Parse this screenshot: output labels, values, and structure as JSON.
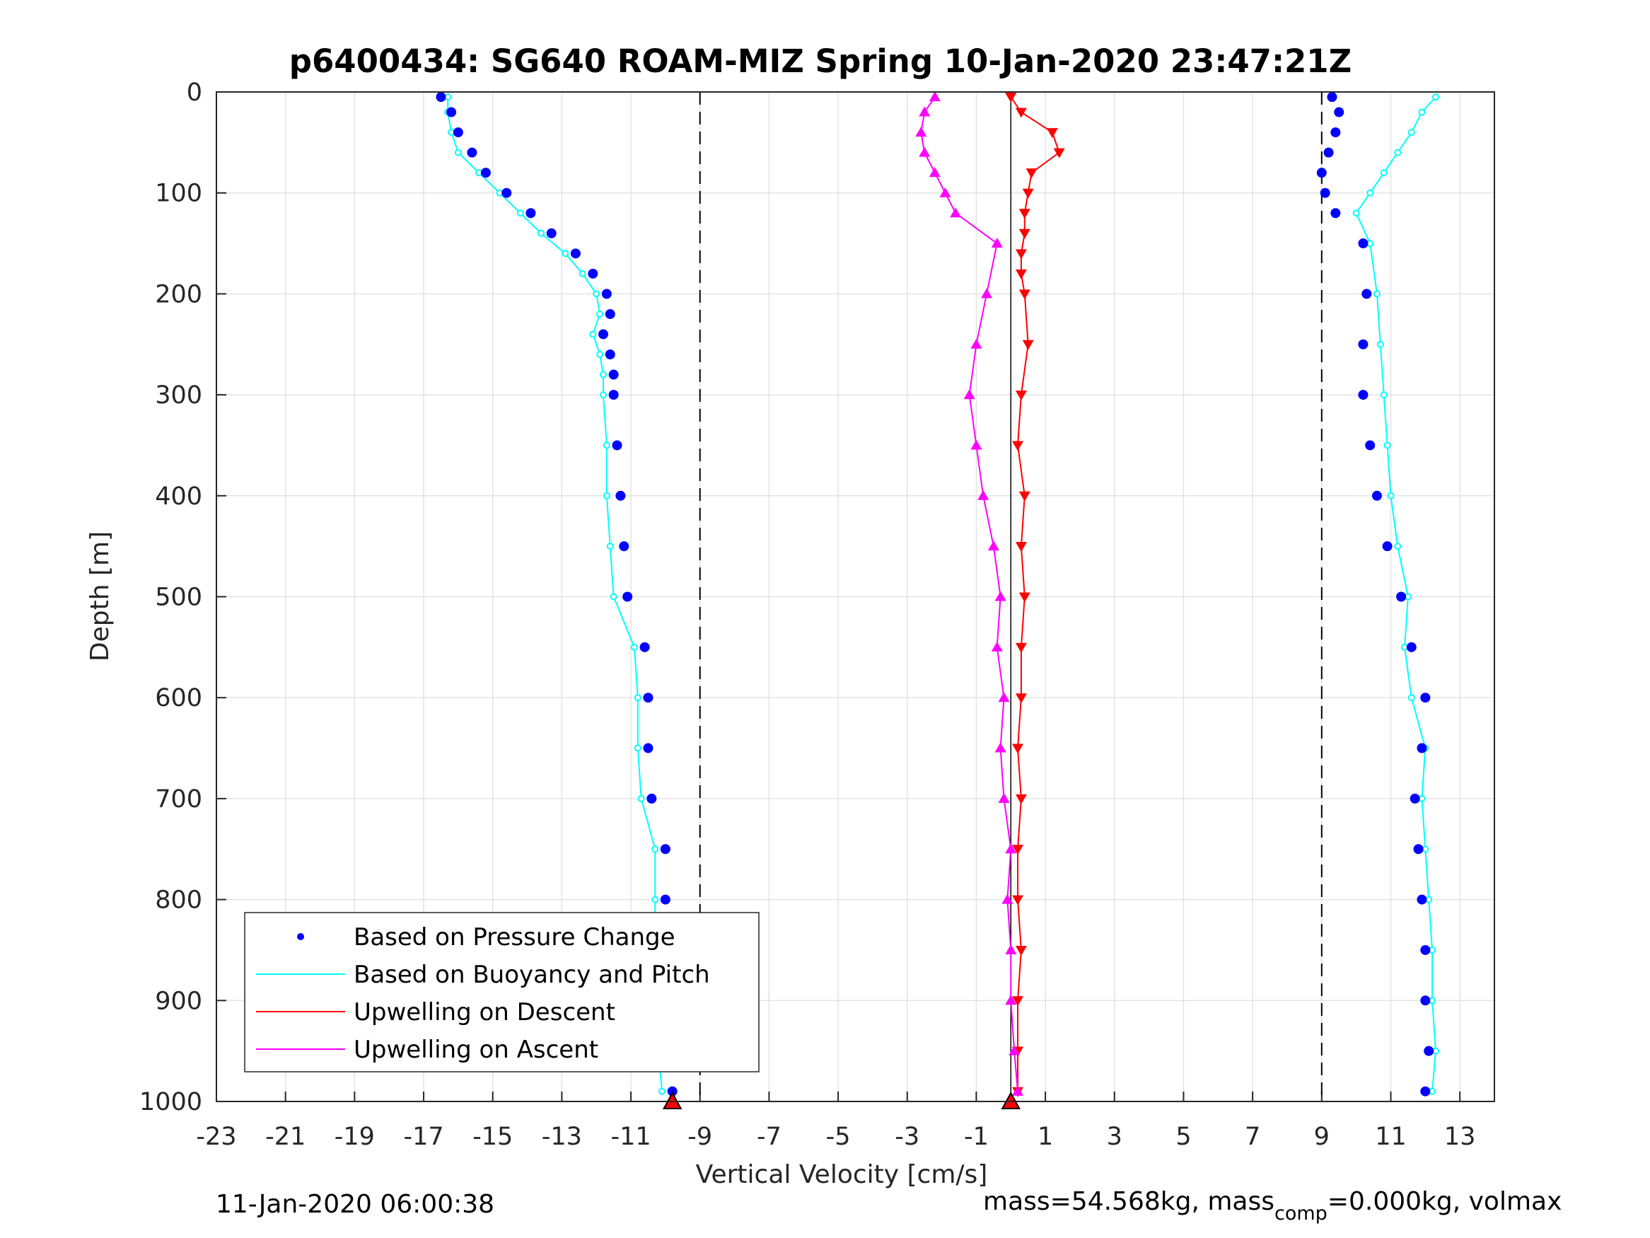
{
  "chart_data": {
    "type": "scatter",
    "title": "p6400434: SG640 ROAM-MIZ Spring 10-Jan-2020 23:47:21Z",
    "xlabel": "Vertical Velocity [cm/s]",
    "ylabel": "Depth [m]",
    "xlim": [
      -23,
      14
    ],
    "ylim": [
      0,
      1000
    ],
    "y_reversed": true,
    "grid": true,
    "x_ticks": [
      -23,
      -21,
      -19,
      -17,
      -15,
      -13,
      -11,
      -9,
      -7,
      -5,
      -3,
      -1,
      1,
      3,
      5,
      7,
      9,
      11,
      13
    ],
    "y_ticks": [
      0,
      100,
      200,
      300,
      400,
      500,
      600,
      700,
      800,
      900,
      1000
    ],
    "reference_lines_x": [
      -9,
      9
    ],
    "colors": {
      "pressure": "#0000ff",
      "buoyancy": "#00ffff",
      "descent": "#ff0000",
      "ascent": "#ff00ff"
    },
    "legend_position": "bottom-left",
    "legend": [
      "Based on Pressure Change",
      "Based on Buoyancy and Pitch",
      "Upwelling on Descent",
      "Upwelling on Ascent"
    ],
    "series": [
      {
        "name": "Based on Pressure Change",
        "role": "descent-velocity",
        "depth": [
          5,
          20,
          40,
          60,
          80,
          100,
          120,
          140,
          160,
          180,
          200,
          220,
          240,
          260,
          280,
          300,
          350,
          400,
          450,
          500,
          550,
          600,
          650,
          700,
          750,
          800,
          850,
          900,
          950,
          990
        ],
        "velocity": [
          -16.5,
          -16.2,
          -16.0,
          -15.6,
          -15.2,
          -14.6,
          -13.9,
          -13.3,
          -12.6,
          -12.1,
          -11.7,
          -11.6,
          -11.8,
          -11.6,
          -11.5,
          -11.5,
          -11.4,
          -11.3,
          -11.2,
          -11.1,
          -10.6,
          -10.5,
          -10.5,
          -10.4,
          -10.0,
          -10.0,
          -10.0,
          -10.0,
          -9.9,
          -9.8
        ]
      },
      {
        "name": "Based on Buoyancy and Pitch",
        "role": "descent-velocity",
        "depth": [
          5,
          20,
          40,
          60,
          80,
          100,
          120,
          140,
          160,
          180,
          200,
          220,
          240,
          260,
          280,
          300,
          350,
          400,
          450,
          500,
          550,
          600,
          650,
          700,
          750,
          800,
          850,
          900,
          950,
          990
        ],
        "velocity": [
          -16.3,
          -16.3,
          -16.2,
          -16.0,
          -15.4,
          -14.8,
          -14.2,
          -13.6,
          -12.9,
          -12.4,
          -12.0,
          -11.9,
          -12.1,
          -11.9,
          -11.8,
          -11.8,
          -11.7,
          -11.7,
          -11.6,
          -11.5,
          -10.9,
          -10.8,
          -10.8,
          -10.7,
          -10.3,
          -10.3,
          -10.3,
          -10.3,
          -10.2,
          -10.1
        ]
      },
      {
        "name": "Based on Pressure Change",
        "role": "ascent-velocity",
        "depth": [
          990,
          950,
          900,
          850,
          800,
          750,
          700,
          650,
          600,
          550,
          500,
          450,
          400,
          350,
          300,
          250,
          200,
          150,
          120,
          100,
          80,
          60,
          40,
          20,
          5
        ],
        "velocity": [
          12.0,
          12.1,
          12.0,
          12.0,
          11.9,
          11.8,
          11.7,
          11.9,
          12.0,
          11.6,
          11.3,
          10.9,
          10.6,
          10.4,
          10.2,
          10.2,
          10.3,
          10.2,
          9.4,
          9.1,
          9.0,
          9.2,
          9.4,
          9.5,
          9.3
        ]
      },
      {
        "name": "Based on Buoyancy and Pitch",
        "role": "ascent-velocity",
        "depth": [
          990,
          950,
          900,
          850,
          800,
          750,
          700,
          650,
          600,
          550,
          500,
          450,
          400,
          350,
          300,
          250,
          200,
          150,
          120,
          100,
          80,
          60,
          40,
          20,
          5
        ],
        "velocity": [
          12.2,
          12.3,
          12.2,
          12.2,
          12.1,
          12.0,
          11.9,
          12.0,
          11.6,
          11.4,
          11.5,
          11.2,
          11.0,
          10.9,
          10.8,
          10.7,
          10.6,
          10.4,
          10.0,
          10.4,
          10.8,
          11.2,
          11.6,
          11.9,
          12.3
        ]
      },
      {
        "name": "Upwelling on Descent",
        "depth": [
          5,
          20,
          40,
          60,
          80,
          100,
          120,
          140,
          160,
          180,
          200,
          250,
          300,
          350,
          400,
          450,
          500,
          550,
          600,
          650,
          700,
          750,
          800,
          850,
          900,
          950,
          990
        ],
        "velocity": [
          0.0,
          0.3,
          1.2,
          1.4,
          0.6,
          0.5,
          0.4,
          0.4,
          0.3,
          0.3,
          0.4,
          0.5,
          0.3,
          0.2,
          0.4,
          0.3,
          0.4,
          0.3,
          0.3,
          0.2,
          0.3,
          0.2,
          0.2,
          0.3,
          0.2,
          0.2,
          0.2
        ]
      },
      {
        "name": "Upwelling on Ascent",
        "depth": [
          990,
          950,
          900,
          850,
          800,
          750,
          700,
          650,
          600,
          550,
          500,
          450,
          400,
          350,
          300,
          250,
          200,
          150,
          120,
          100,
          80,
          60,
          40,
          20,
          5
        ],
        "velocity": [
          0.2,
          0.1,
          0.0,
          0.0,
          -0.1,
          0.0,
          -0.2,
          -0.3,
          -0.2,
          -0.4,
          -0.3,
          -0.5,
          -0.8,
          -1.0,
          -1.2,
          -1.0,
          -0.7,
          -0.4,
          -1.6,
          -1.9,
          -2.2,
          -2.5,
          -2.6,
          -2.5,
          -2.2
        ]
      }
    ],
    "footer_left": "11-Jan-2020 06:00:38",
    "footer_right_parts": [
      "mass=54.568kg, mass",
      "comp",
      "=0.000kg, volmax"
    ]
  }
}
